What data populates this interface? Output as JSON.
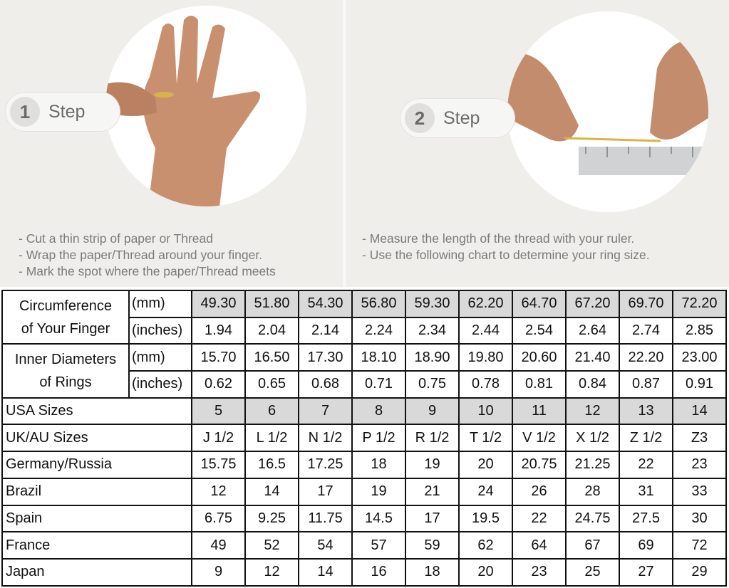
{
  "steps": [
    {
      "number": "1",
      "label": "Step",
      "instructions": [
        "- Cut a thin strip of paper or Thread",
        "- Wrap the paper/Thread around your finger.",
        "- Mark the spot where the paper/Thread meets"
      ]
    },
    {
      "number": "2",
      "label": "Step",
      "instructions": [
        "- Measure the length of the thread with your ruler.",
        "- Use the following chart to determine your ring size."
      ]
    }
  ],
  "table": {
    "circumference": {
      "label_line1": "Circumference",
      "label_line2": "of Your Finger",
      "mm_unit": "(mm)",
      "inches_unit": "(inches)",
      "mm": [
        "49.30",
        "51.80",
        "54.30",
        "56.80",
        "59.30",
        "62.20",
        "64.70",
        "67.20",
        "69.70",
        "72.20"
      ],
      "inches": [
        "1.94",
        "2.04",
        "2.14",
        "2.24",
        "2.34",
        "2.44",
        "2.54",
        "2.64",
        "2.74",
        "2.85"
      ]
    },
    "inner_diameter": {
      "label_line1": "Inner Diameters",
      "label_line2": "of Rings",
      "mm_unit": "(mm)",
      "inches_unit": "(inches)",
      "mm": [
        "15.70",
        "16.50",
        "17.30",
        "18.10",
        "18.90",
        "19.80",
        "20.60",
        "21.40",
        "22.20",
        "23.00"
      ],
      "inches": [
        "0.62",
        "0.65",
        "0.68",
        "0.71",
        "0.75",
        "0.78",
        "0.81",
        "0.84",
        "0.87",
        "0.91"
      ]
    },
    "rows": [
      {
        "label": "USA Sizes",
        "values": [
          "5",
          "6",
          "7",
          "8",
          "9",
          "10",
          "11",
          "12",
          "13",
          "14"
        ]
      },
      {
        "label": "UK/AU Sizes",
        "values": [
          "J 1/2",
          "L 1/2",
          "N 1/2",
          "P 1/2",
          "R 1/2",
          "T 1/2",
          "V 1/2",
          "X 1/2",
          "Z 1/2",
          "Z3"
        ]
      },
      {
        "label": "Germany/Russia",
        "values": [
          "15.75",
          "16.5",
          "17.25",
          "18",
          "19",
          "20",
          "20.75",
          "21.25",
          "22",
          "23"
        ]
      },
      {
        "label": "Brazil",
        "values": [
          "12",
          "14",
          "17",
          "19",
          "21",
          "24",
          "26",
          "28",
          "31",
          "33"
        ]
      },
      {
        "label": "Spain",
        "values": [
          "6.75",
          "9.25",
          "11.75",
          "14.5",
          "17",
          "19.5",
          "22",
          "24.75",
          "27.5",
          "30"
        ]
      },
      {
        "label": "France",
        "values": [
          "49",
          "52",
          "54",
          "57",
          "59",
          "62",
          "64",
          "67",
          "69",
          "72"
        ]
      },
      {
        "label": "Japan",
        "values": [
          "9",
          "12",
          "14",
          "16",
          "18",
          "20",
          "23",
          "25",
          "27",
          "29"
        ]
      }
    ]
  },
  "colors": {
    "highlight": "#d9d9d9",
    "panel": "#efeeeb"
  }
}
